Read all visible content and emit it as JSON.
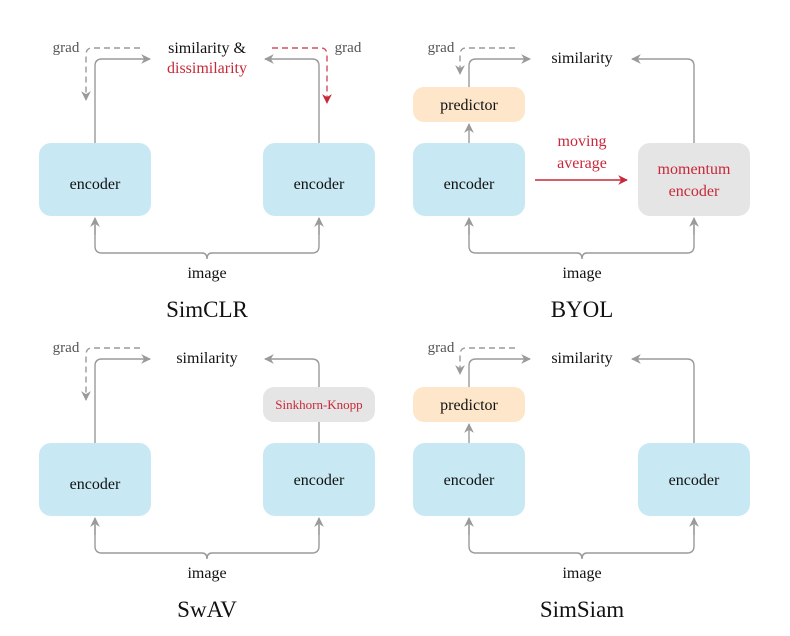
{
  "colors": {
    "encoder": "#c8e9f4",
    "predictor": "#fde6ca",
    "momentum": "#e5e5e5",
    "accent_red": "#c8283a",
    "arrow": "#9a9a9a"
  },
  "panels": [
    {
      "title": "SimCLR",
      "left": "encoder",
      "right": "encoder",
      "top_line1": "similarity &",
      "top_line2": "dissimilarity",
      "grad_left": "grad",
      "grad_right": "grad",
      "input": "image"
    },
    {
      "title": "BYOL",
      "left": "encoder",
      "predictor": "predictor",
      "right_line1": "momentum",
      "right_line2": "encoder",
      "top": "similarity",
      "grad_left": "grad",
      "middle_line1": "moving",
      "middle_line2": "average",
      "input": "image"
    },
    {
      "title": "SwAV",
      "left": "encoder",
      "right": "encoder",
      "right_extra": "Sinkhorn-Knopp",
      "top": "similarity",
      "grad_left": "grad",
      "input": "image"
    },
    {
      "title": "SimSiam",
      "left": "encoder",
      "predictor": "predictor",
      "right": "encoder",
      "top": "similarity",
      "grad_left": "grad",
      "input": "image"
    }
  ]
}
